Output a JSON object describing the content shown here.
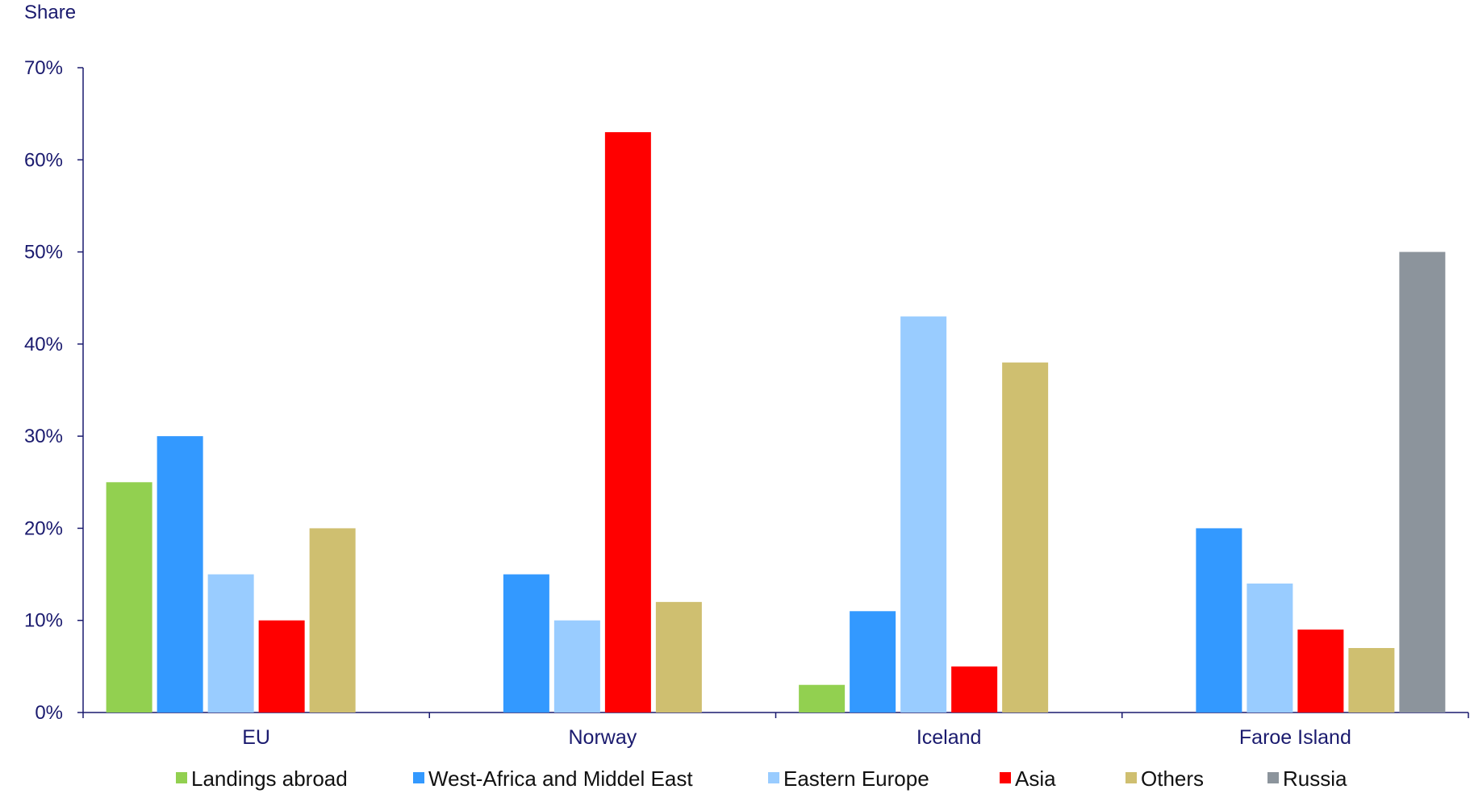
{
  "chart_data": {
    "type": "bar",
    "title": "",
    "xlabel": "",
    "ylabel": "Share",
    "ylim": [
      0,
      70
    ],
    "yticks": [
      "0%",
      "10%",
      "20%",
      "30%",
      "40%",
      "50%",
      "60%",
      "70%"
    ],
    "ytick_values": [
      0,
      10,
      20,
      30,
      40,
      50,
      60,
      70
    ],
    "categories": [
      "EU",
      "Norway",
      "Iceland",
      "Faroe Island"
    ],
    "grid": false,
    "legend_position": "bottom",
    "series": [
      {
        "name": "Landings abroad",
        "color": "#92d050",
        "values": [
          25,
          null,
          3,
          null
        ]
      },
      {
        "name": "West-Africa and Middel East",
        "color": "#3399ff",
        "values": [
          30,
          15,
          11,
          20
        ]
      },
      {
        "name": "Eastern Europe",
        "color": "#99ccff",
        "values": [
          15,
          10,
          43,
          14
        ]
      },
      {
        "name": "Asia",
        "color": "#ff0000",
        "values": [
          10,
          63,
          5,
          9
        ]
      },
      {
        "name": "Others",
        "color": "#cfbf70",
        "values": [
          20,
          12,
          38,
          7
        ]
      },
      {
        "name": "Russia",
        "color": "#8c949c",
        "values": [
          null,
          null,
          null,
          50
        ]
      }
    ],
    "axis_color": "#1a1a6e"
  }
}
